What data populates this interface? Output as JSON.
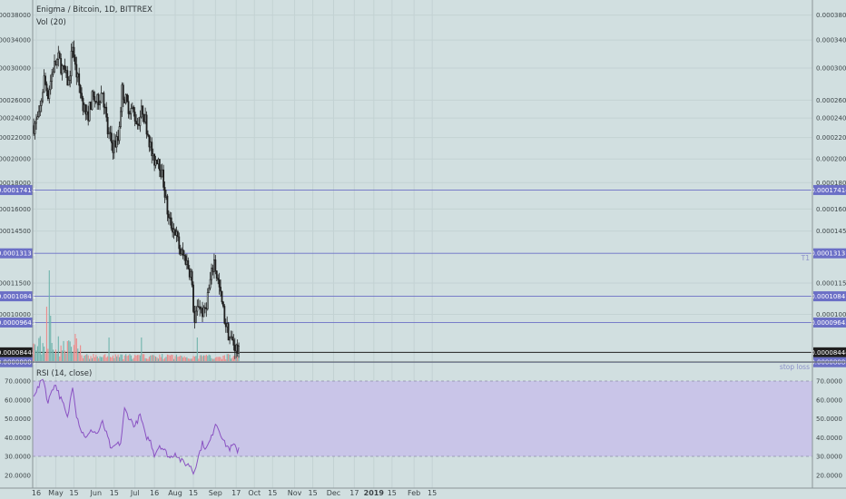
{
  "chart_data": [
    {
      "type": "candlestick",
      "title": "Enigma / Bitcoin, 1D, BITTREX",
      "volume_label": "Vol (20)",
      "price_axis": {
        "ticks": [
          "0.00038000",
          "0.00034000",
          "0.00030000",
          "0.00026000",
          "0.00024000",
          "0.00022000",
          "0.00020000",
          "0.00018000",
          "0.00016000",
          "0.00014500",
          "0.00011500",
          "0.00010000",
          "0.00008000"
        ],
        "log_scale": true
      },
      "time_axis": {
        "labels": [
          "16",
          "May",
          "15",
          "Jun",
          "15",
          "Jul",
          "16",
          "Aug",
          "15",
          "Sep",
          "17",
          "Oct",
          "15",
          "Nov",
          "15",
          "Dec",
          "17",
          "2019",
          "15",
          "Feb",
          "15"
        ]
      },
      "horizontal_levels": [
        {
          "value": "0.00017414",
          "color": "#6b6fc6"
        },
        {
          "value": "0.00013131",
          "color": "#6b6fc6",
          "note": "T1"
        },
        {
          "value": "0.00010841",
          "color": "#6b6fc6"
        },
        {
          "value": "0.00009645",
          "color": "#6b6fc6"
        },
        {
          "value": "0.00008444",
          "color": "#1f1f1f",
          "current": true
        },
        {
          "value": "0.00008080",
          "color": "#6b6fc6",
          "note": "stop loss"
        }
      ],
      "close_path": [
        [
          "Apr 14",
          0.000232
        ],
        [
          "Apr 18",
          0.00024
        ],
        [
          "Apr 22",
          0.000285
        ],
        [
          "Apr 25",
          0.000268
        ],
        [
          "Apr 29",
          0.0003
        ],
        [
          "May 3",
          0.000312
        ],
        [
          "May 7",
          0.000295
        ],
        [
          "May 11",
          0.00028
        ],
        [
          "May 14",
          0.000335
        ],
        [
          "May 16",
          0.0003
        ],
        [
          "May 21",
          0.000262
        ],
        [
          "May 25",
          0.00024
        ],
        [
          "May 29",
          0.000262
        ],
        [
          "Jun 2",
          0.000258
        ],
        [
          "Jun 6",
          0.000272
        ],
        [
          "Jun 10",
          0.000225
        ],
        [
          "Jun 14",
          0.000212
        ],
        [
          "Jun 18",
          0.000218
        ],
        [
          "Jun 21",
          0.000272
        ],
        [
          "Jun 25",
          0.000255
        ],
        [
          "Jun 29",
          0.000248
        ],
        [
          "Jul 3",
          0.000235
        ],
        [
          "Jul 7",
          0.00025
        ],
        [
          "Jul 11",
          0.000225
        ],
        [
          "Jul 15",
          0.000198
        ],
        [
          "Jul 19",
          0.000202
        ],
        [
          "Jul 23",
          0.00018
        ],
        [
          "Jul 27",
          0.000152
        ],
        [
          "Aug 1",
          0.000145
        ],
        [
          "Aug 5",
          0.000132
        ],
        [
          "Aug 9",
          0.000128
        ],
        [
          "Aug 13",
          0.00012
        ],
        [
          "Aug 16",
          9.6e-05
        ],
        [
          "Aug 19",
          0.000105
        ],
        [
          "Aug 23",
          0.0001
        ],
        [
          "Aug 27",
          0.000112
        ],
        [
          "Aug 31",
          0.000127
        ],
        [
          "Sep 4",
          0.000112
        ],
        [
          "Sep 8",
          9.8e-05
        ],
        [
          "Sep 12",
          9e-05
        ],
        [
          "Sep 16",
          8.7e-05
        ],
        [
          "Sep 19",
          8.4e-05
        ]
      ]
    },
    {
      "type": "line",
      "title": "RSI (14, close)",
      "y_axis": {
        "ticks": [
          "70.0000",
          "60.0000",
          "50.0000",
          "40.0000",
          "30.0000",
          "20.0000"
        ],
        "band": [
          30,
          70
        ]
      },
      "rsi_path": [
        [
          "Apr 14",
          63
        ],
        [
          "Apr 18",
          67
        ],
        [
          "Apr 21",
          72
        ],
        [
          "Apr 23",
          66
        ],
        [
          "Apr 25",
          58
        ],
        [
          "Apr 28",
          66
        ],
        [
          "May 1",
          68
        ],
        [
          "May 4",
          62
        ],
        [
          "May 7",
          57
        ],
        [
          "May 10",
          50
        ],
        [
          "May 14",
          68
        ],
        [
          "May 17",
          52
        ],
        [
          "May 21",
          43
        ],
        [
          "May 25",
          40
        ],
        [
          "May 29",
          44
        ],
        [
          "Jun 2",
          42
        ],
        [
          "Jun 6",
          48
        ],
        [
          "Jun 10",
          40
        ],
        [
          "Jun 13",
          33
        ],
        [
          "Jun 16",
          36
        ],
        [
          "Jun 20",
          37
        ],
        [
          "Jun 23",
          55
        ],
        [
          "Jun 27",
          50
        ],
        [
          "Jul 1",
          46
        ],
        [
          "Jul 5",
          52
        ],
        [
          "Jul 9",
          41
        ],
        [
          "Jul 13",
          38
        ],
        [
          "Jul 16",
          31
        ],
        [
          "Jul 20",
          36
        ],
        [
          "Jul 24",
          33
        ],
        [
          "Jul 28",
          29
        ],
        [
          "Aug 1",
          32
        ],
        [
          "Aug 5",
          28
        ],
        [
          "Aug 9",
          26
        ],
        [
          "Aug 13",
          25
        ],
        [
          "Aug 15",
          21
        ],
        [
          "Aug 18",
          28
        ],
        [
          "Aug 22",
          37
        ],
        [
          "Aug 25",
          34
        ],
        [
          "Aug 29",
          40
        ],
        [
          "Sep 1",
          48
        ],
        [
          "Sep 4",
          44
        ],
        [
          "Sep 8",
          37
        ],
        [
          "Sep 12",
          34
        ],
        [
          "Sep 15",
          36
        ],
        [
          "Sep 18",
          33
        ],
        [
          "Sep 19",
          35
        ]
      ]
    }
  ],
  "ui": {
    "colors": {
      "background": "#d1dfe0",
      "candle": "#1f1f1f",
      "rsi_line": "#8a52c2",
      "rsi_band": "#c9c5e8",
      "level_line": "#6b6fc6",
      "vol_up": "#6fb3ac",
      "vol_down": "#eb8b8b"
    }
  }
}
